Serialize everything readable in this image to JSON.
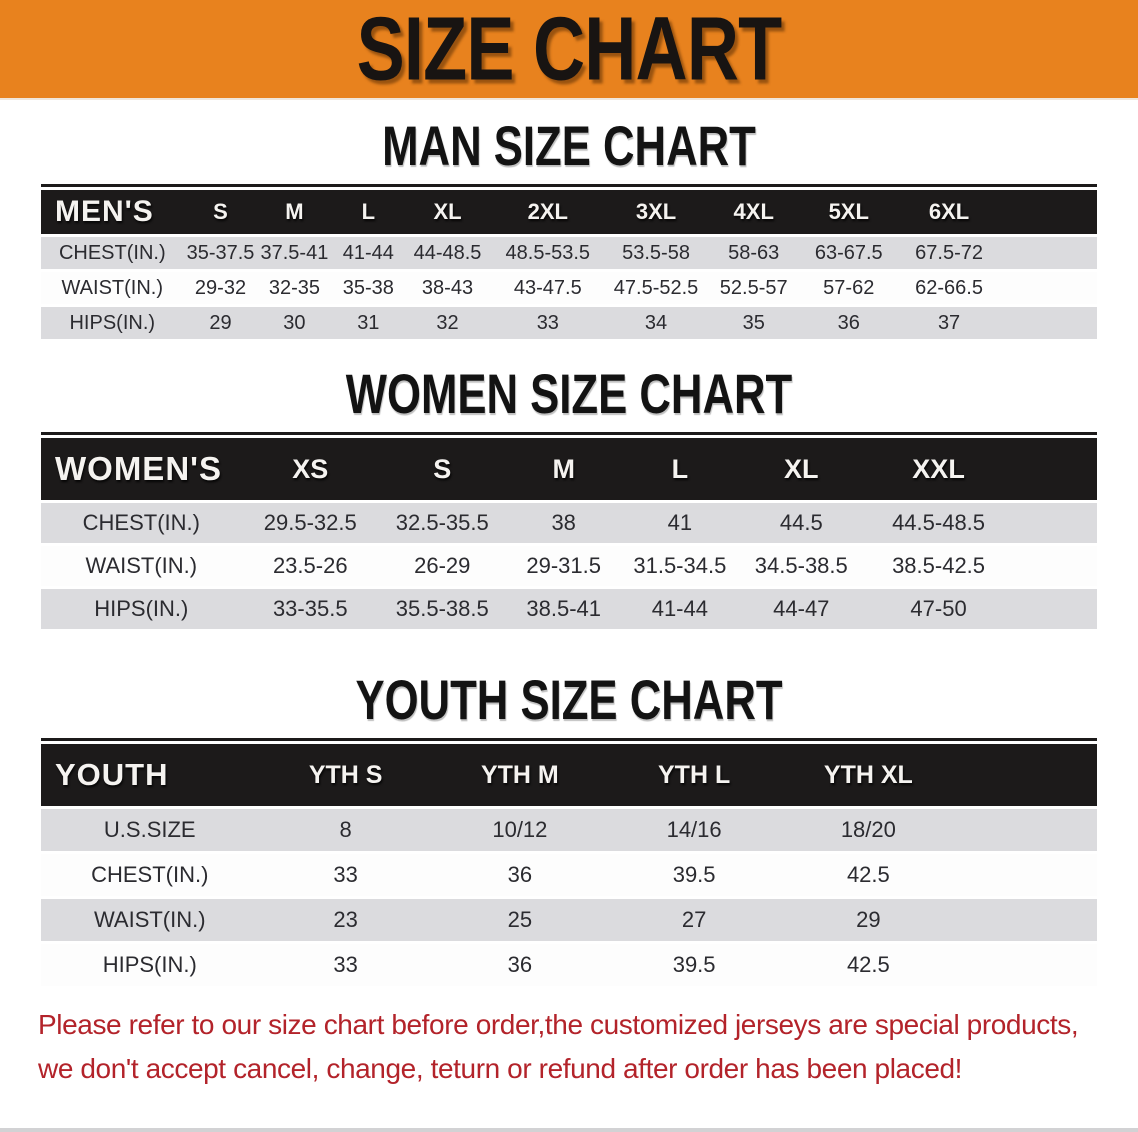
{
  "banner": {
    "title": "SIZE CHART",
    "bg_color": "#e8821e",
    "text_color": "#181412"
  },
  "sections": [
    {
      "heading": "MAN SIZE CHART",
      "group_label": "MEN'S",
      "sizes": [
        "S",
        "M",
        "L",
        "XL",
        "2XL",
        "3XL",
        "4XL",
        "5XL",
        "6XL"
      ],
      "rows": [
        {
          "label": "CHEST(IN.)",
          "values": [
            "35-37.5",
            "37.5-41",
            "41-44",
            "44-48.5",
            "48.5-53.5",
            "53.5-58",
            "58-63",
            "63-67.5",
            "67.5-72"
          ]
        },
        {
          "label": "WAIST(IN.)",
          "values": [
            "29-32",
            "32-35",
            "35-38",
            "38-43",
            "43-47.5",
            "47.5-52.5",
            "52.5-57",
            "57-62",
            "62-66.5"
          ]
        },
        {
          "label": "HIPS(IN.)",
          "values": [
            "29",
            "30",
            "31",
            "32",
            "33",
            "34",
            "35",
            "36",
            "37"
          ]
        }
      ]
    },
    {
      "heading": "WOMEN SIZE CHART",
      "group_label": "WOMEN'S",
      "sizes": [
        "XS",
        "S",
        "M",
        "L",
        "XL",
        "XXL"
      ],
      "rows": [
        {
          "label": "CHEST(IN.)",
          "values": [
            "29.5-32.5",
            "32.5-35.5",
            "38",
            "41",
            "44.5",
            "44.5-48.5"
          ]
        },
        {
          "label": "WAIST(IN.)",
          "values": [
            "23.5-26",
            "26-29",
            "29-31.5",
            "31.5-34.5",
            "34.5-38.5",
            "38.5-42.5"
          ]
        },
        {
          "label": "HIPS(IN.)",
          "values": [
            "33-35.5",
            "35.5-38.5",
            "38.5-41",
            "41-44",
            "44-47",
            "47-50"
          ]
        }
      ]
    },
    {
      "heading": "YOUTH SIZE CHART",
      "group_label": "YOUTH",
      "sizes": [
        "YTH S",
        "YTH M",
        "YTH L",
        "YTH XL"
      ],
      "rows": [
        {
          "label": "U.S.SIZE",
          "values": [
            "8",
            "10/12",
            "14/16",
            "18/20"
          ]
        },
        {
          "label": "CHEST(IN.)",
          "values": [
            "33",
            "36",
            "39.5",
            "42.5"
          ]
        },
        {
          "label": "WAIST(IN.)",
          "values": [
            "23",
            "25",
            "27",
            "29"
          ]
        },
        {
          "label": "HIPS(IN.)",
          "values": [
            "33",
            "36",
            "39.5",
            "42.5"
          ]
        }
      ]
    }
  ],
  "disclaimer": {
    "line1": "Please refer to our size chart before order,the customized jerseys are special products,",
    "line2": "we don't accept cancel, change, teturn or refund after order has been placed!",
    "color": "#b3232a"
  },
  "table_colors": {
    "header_bar": "#1c1a1a",
    "header_text": "#f5f3f0",
    "row_gray": "#dbdbde",
    "row_white": "#fdfdfd"
  }
}
